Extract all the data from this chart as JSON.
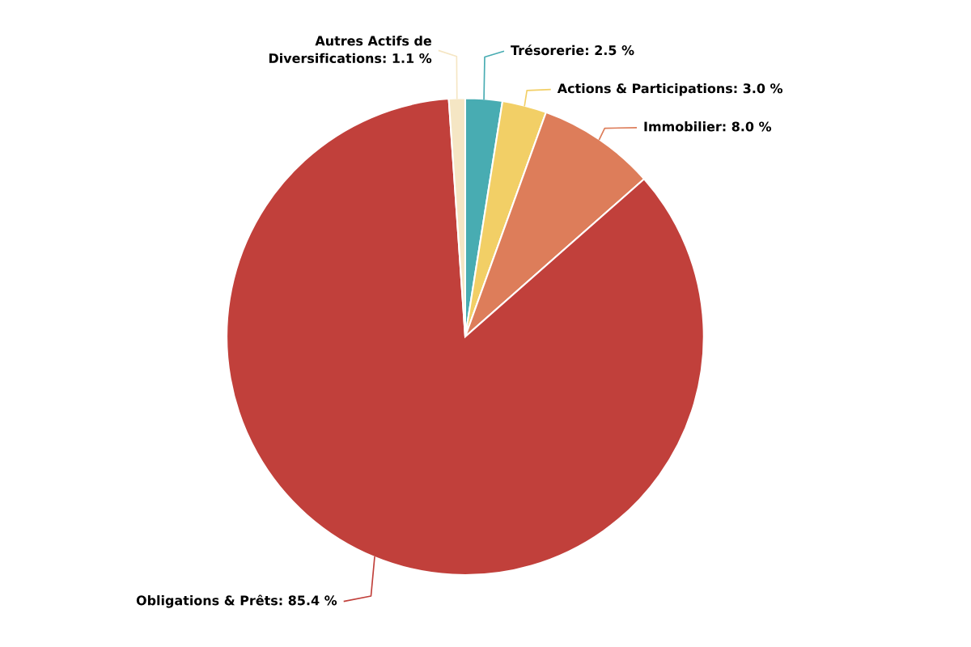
{
  "chart_data": {
    "type": "pie",
    "categories": [
      "Trésorerie",
      "Actions & Participations",
      "Immobilier",
      "Obligations & Prêts",
      "Autres Actifs de Diversifications"
    ],
    "values": [
      2.5,
      3.0,
      8.0,
      85.4,
      1.1
    ],
    "value_labels": [
      "2.5 %",
      "3.0 %",
      "8.0 %",
      "85.4 %",
      "1.1 %"
    ],
    "colors": [
      "#48acb2",
      "#f2cf66",
      "#dd7d5a",
      "#c1403b",
      "#f5e6c4"
    ],
    "legend": false
  }
}
